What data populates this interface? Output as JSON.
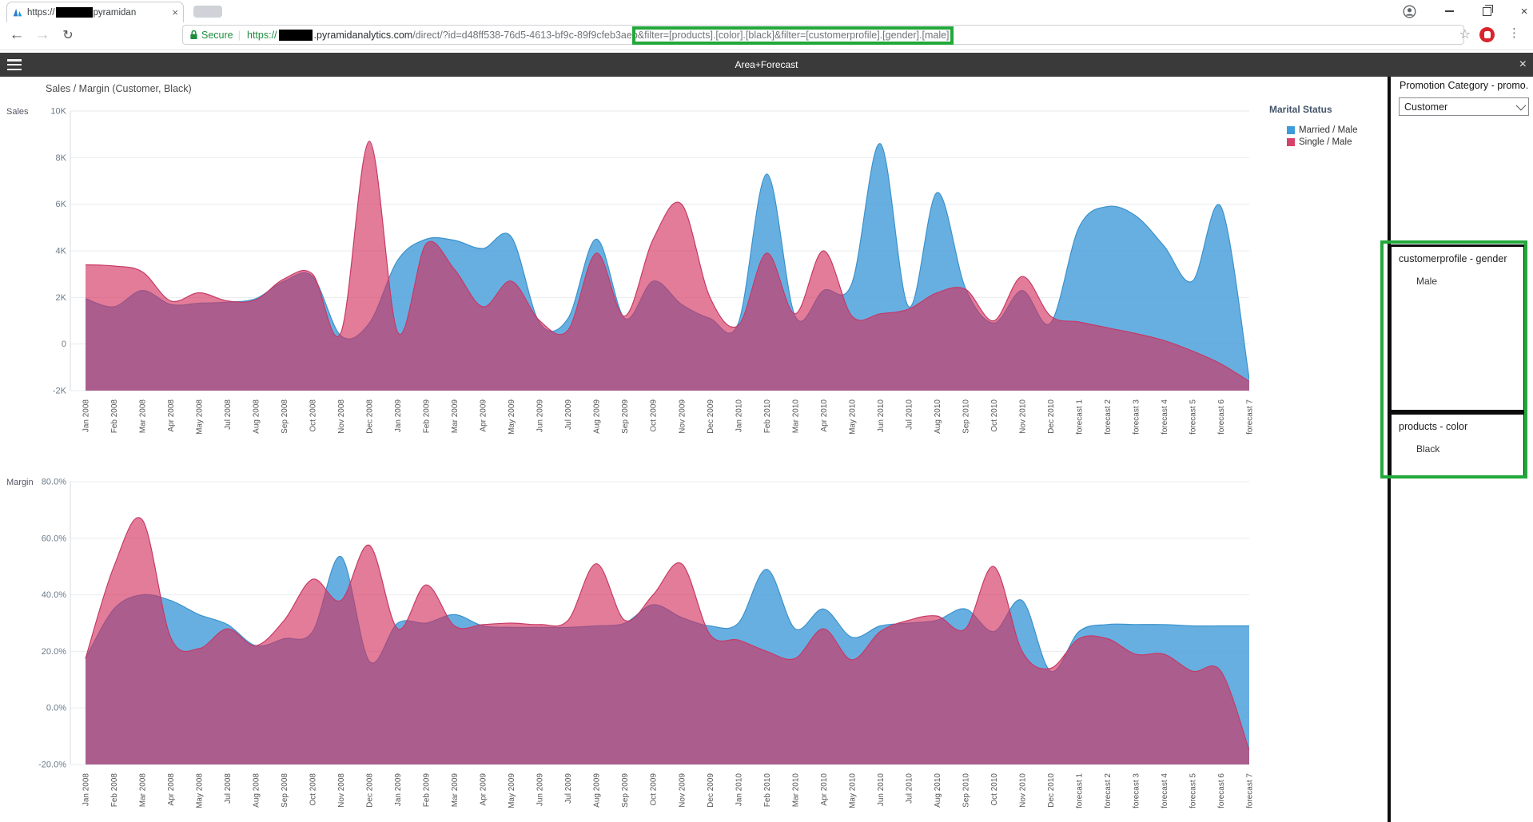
{
  "glyphs": {
    "close": "×",
    "back": "←",
    "forward": "→",
    "refresh": "↻",
    "star": "☆",
    "menu": "⋮",
    "separator": "|"
  },
  "browser": {
    "tab": {
      "title_prefix": "https://",
      "title_suffix": "pyramidan",
      "redacted": true
    },
    "toolbar": {
      "secure_label": "Secure",
      "url": {
        "scheme": "https://",
        "domain_redacted": true,
        "domain": ".pyramidanalytics.com",
        "path": "/direct/?id=d48ff538-76d5-4613-bf9c-89f9cfeb3aeb",
        "filter_params": "&filter=[products].[color].[black]&filter=[customerprofile].[gender].[male]"
      }
    }
  },
  "app": {
    "header_title": "Area+Forecast",
    "page_title": "Sales / Margin (Customer, Black)"
  },
  "legend": {
    "title": "Marital Status",
    "items": [
      {
        "label": "Married / Male",
        "color": "#3d9bd9"
      },
      {
        "label": "Single / Male",
        "color": "#d5416a"
      }
    ]
  },
  "panel": {
    "promotion_label": "Promotion Category - promo...",
    "promotion_value": "Customer",
    "filters": [
      {
        "title": "customerprofile - gender",
        "value": "Male"
      },
      {
        "title": "products - color",
        "value": "Black"
      }
    ]
  },
  "annotations": {
    "color": "#23a83b"
  },
  "chart_data": [
    {
      "type": "area",
      "title": "Sales",
      "ylabel": "Sales",
      "unit": "thousands (K)",
      "ylim": [
        -2,
        10
      ],
      "grid": true,
      "legend_position": "top-right",
      "yticks": [
        {
          "v": 10,
          "label": "10K"
        },
        {
          "v": 8,
          "label": "8K"
        },
        {
          "v": 6,
          "label": "6K"
        },
        {
          "v": 4,
          "label": "4K"
        },
        {
          "v": 2,
          "label": "2K"
        },
        {
          "v": 0,
          "label": "0"
        },
        {
          "v": -2,
          "label": "-2K"
        }
      ],
      "categories": [
        "Jan 2008",
        "Feb 2008",
        "Mar 2008",
        "Apr 2008",
        "May 2008",
        "Jul 2008",
        "Aug 2008",
        "Sep 2008",
        "Oct 2008",
        "Nov 2008",
        "Dec 2008",
        "Jan 2009",
        "Feb 2009",
        "Mar 2009",
        "Apr 2009",
        "May 2009",
        "Jun 2009",
        "Jul 2009",
        "Aug 2009",
        "Sep 2009",
        "Oct 2009",
        "Nov 2009",
        "Dec 2009",
        "Jan 2010",
        "Feb 2010",
        "Mar 2010",
        "Apr 2010",
        "May 2010",
        "Jun 2010",
        "Jul 2010",
        "Aug 2010",
        "Sep 2010",
        "Oct 2010",
        "Nov 2010",
        "Dec 2010",
        "forecast 1",
        "forecast 2",
        "forecast 3",
        "forecast 4",
        "forecast 5",
        "forecast 6",
        "forecast 7"
      ],
      "series": [
        {
          "name": "Married / Male",
          "color": "rgba(61,152,216,0.78)",
          "stroke": "#3a92cc",
          "values": [
            1.95,
            1.6,
            2.3,
            1.7,
            1.75,
            1.8,
            1.95,
            2.7,
            2.9,
            0.35,
            0.9,
            3.6,
            4.5,
            4.45,
            4.1,
            4.6,
            0.9,
            1.1,
            4.5,
            1.1,
            2.7,
            1.7,
            1.1,
            0.9,
            7.3,
            1.2,
            2.3,
            2.6,
            8.6,
            1.6,
            6.5,
            2.4,
            0.9,
            2.3,
            0.9,
            5.0,
            5.9,
            5.5,
            4.2,
            2.7,
            5.9,
            -1.5
          ]
        },
        {
          "name": "Single / Male",
          "color": "rgba(210,48,94,0.63)",
          "stroke": "#c63a66",
          "values": [
            3.4,
            3.35,
            3.1,
            1.85,
            2.2,
            1.85,
            1.9,
            2.8,
            3.0,
            0.5,
            8.7,
            0.5,
            4.3,
            3.2,
            1.6,
            2.7,
            1.0,
            0.6,
            3.9,
            1.2,
            4.5,
            6.0,
            2.0,
            0.8,
            3.9,
            1.3,
            4.0,
            1.2,
            1.3,
            1.5,
            2.2,
            2.35,
            1.0,
            2.9,
            1.2,
            0.95,
            0.7,
            0.45,
            0.15,
            -0.3,
            -0.85,
            -1.6
          ]
        }
      ]
    },
    {
      "type": "area",
      "title": "Margin",
      "ylabel": "Margin",
      "unit": "%",
      "ylim": [
        -20,
        80
      ],
      "grid": true,
      "legend_position": "shared-top-right",
      "yticks": [
        {
          "v": 80,
          "label": "80.0%"
        },
        {
          "v": 60,
          "label": "60.0%"
        },
        {
          "v": 40,
          "label": "40.0%"
        },
        {
          "v": 20,
          "label": "20.0%"
        },
        {
          "v": 0,
          "label": "0.0%"
        },
        {
          "v": -20,
          "label": "-20.0%"
        }
      ],
      "categories": [
        "Jan 2008",
        "Feb 2008",
        "Mar 2008",
        "Apr 2008",
        "May 2008",
        "Jul 2008",
        "Aug 2008",
        "Sep 2008",
        "Oct 2008",
        "Nov 2008",
        "Dec 2008",
        "Jan 2009",
        "Feb 2009",
        "Mar 2009",
        "Apr 2009",
        "May 2009",
        "Jun 2009",
        "Jul 2009",
        "Aug 2009",
        "Sep 2009",
        "Oct 2009",
        "Nov 2009",
        "Dec 2009",
        "Jan 2010",
        "Feb 2010",
        "Mar 2010",
        "Apr 2010",
        "May 2010",
        "Jun 2010",
        "Jul 2010",
        "Aug 2010",
        "Sep 2010",
        "Oct 2010",
        "Nov 2010",
        "Dec 2010",
        "forecast 1",
        "forecast 2",
        "forecast 3",
        "forecast 4",
        "forecast 5",
        "forecast 6",
        "forecast 7"
      ],
      "series": [
        {
          "name": "Married / Male",
          "color": "rgba(61,152,216,0.78)",
          "stroke": "#3a92cc",
          "values": [
            17.5,
            35,
            40,
            38,
            33,
            29.5,
            22,
            24.5,
            27,
            53.5,
            16.5,
            30,
            30,
            33,
            29,
            28.5,
            28.5,
            28.5,
            29,
            30,
            36.5,
            32,
            29,
            30,
            49,
            28,
            35,
            25,
            29,
            30,
            31,
            35,
            27,
            38,
            13,
            27,
            29.5,
            29.5,
            29.5,
            29,
            29,
            29
          ]
        },
        {
          "name": "Single / Male",
          "color": "rgba(210,48,94,0.63)",
          "stroke": "#c63a66",
          "values": [
            17.5,
            50,
            66.5,
            25,
            21,
            28,
            22,
            31,
            45.5,
            38,
            57.5,
            28,
            43.5,
            29,
            29.5,
            30,
            29.5,
            31,
            51,
            31,
            40,
            51,
            26,
            24,
            20,
            17.5,
            28,
            17,
            27,
            31,
            32.5,
            28,
            50,
            20,
            14,
            24.5,
            24.5,
            19,
            19,
            13,
            13,
            -15
          ]
        }
      ]
    }
  ]
}
